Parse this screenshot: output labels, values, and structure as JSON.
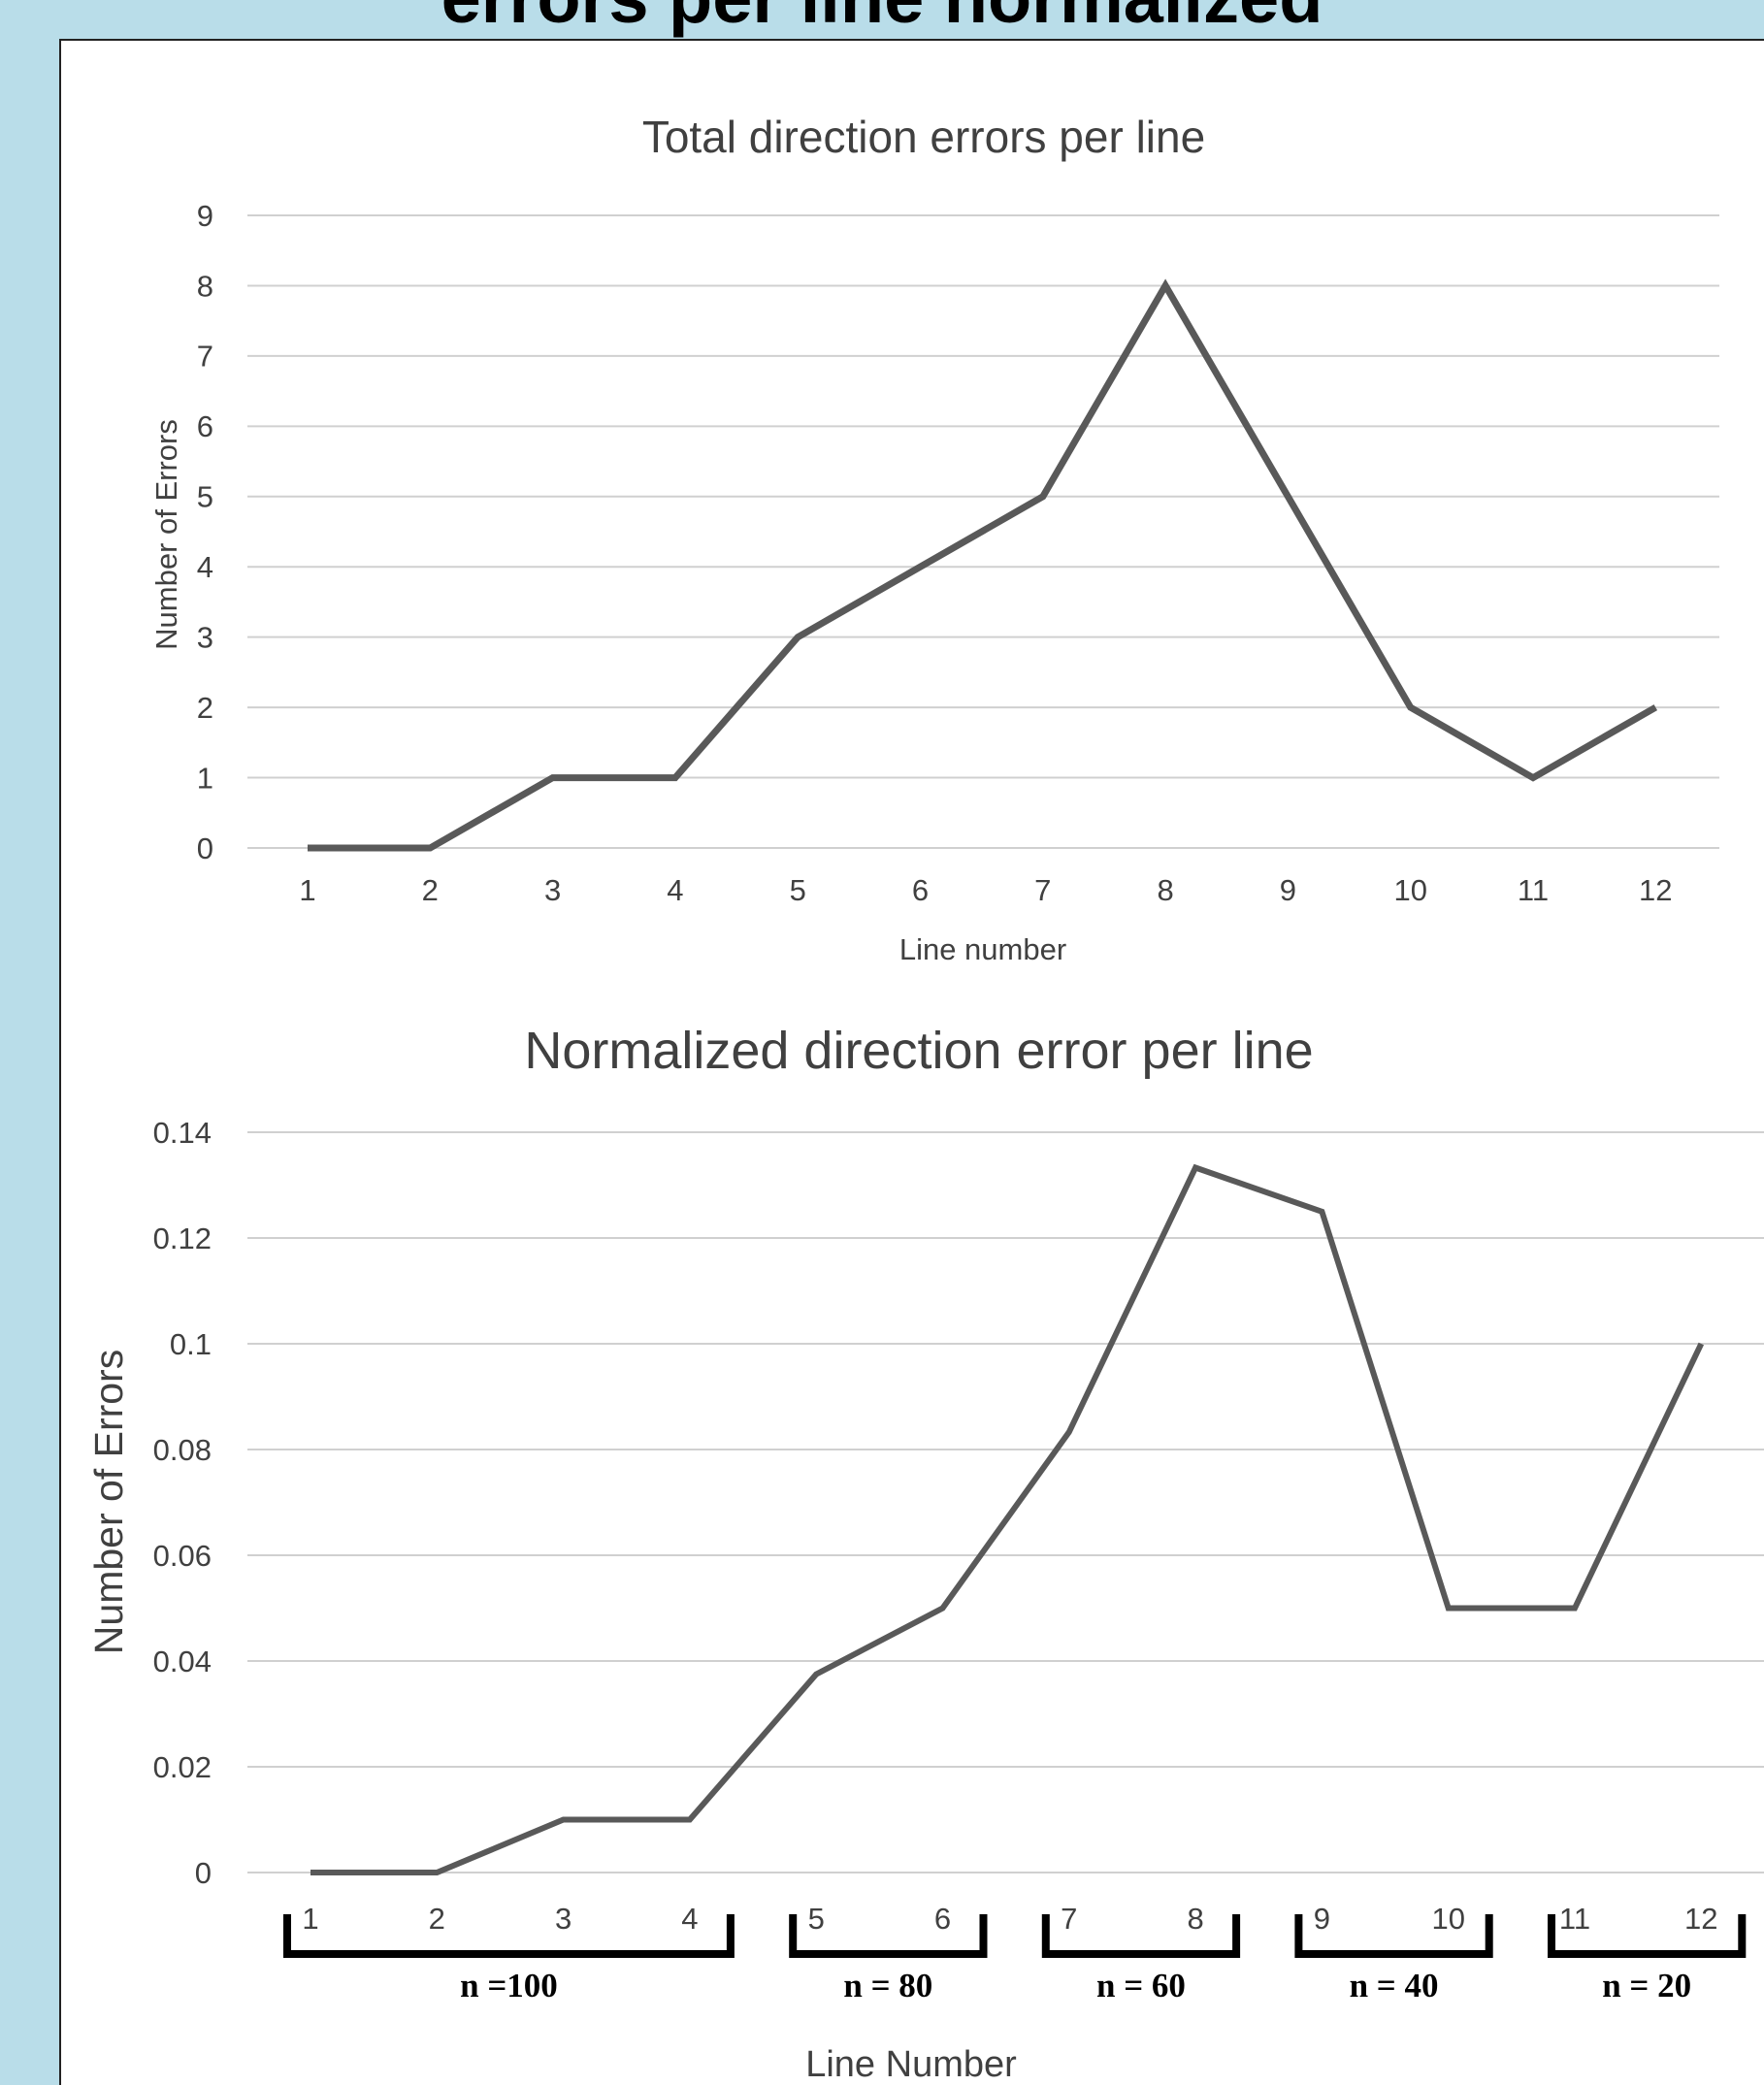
{
  "poster": {
    "heading": "errors per line normalized",
    "colors": {
      "background": "#b9dde9",
      "panel": "#ffffff",
      "line": "#595959",
      "grid": "#d0d0d0",
      "text": "#404040"
    }
  },
  "chart_data": [
    {
      "type": "line",
      "title": "Total direction errors per line",
      "xlabel": "Line number",
      "ylabel": "Number  of Errors",
      "categories": [
        "1",
        "2",
        "3",
        "4",
        "5",
        "6",
        "7",
        "8",
        "9",
        "10",
        "11",
        "12"
      ],
      "values": [
        0,
        0,
        1,
        1,
        3,
        4,
        5,
        8,
        5,
        2,
        1,
        2
      ],
      "yticks": [
        "0",
        "1",
        "2",
        "3",
        "4",
        "5",
        "6",
        "7",
        "8",
        "9"
      ],
      "ylim": [
        0,
        9
      ],
      "grid": true
    },
    {
      "type": "line",
      "title": "Normalized direction error per line",
      "xlabel": "Line Number",
      "ylabel": "Number of Errors",
      "categories": [
        "1",
        "2",
        "3",
        "4",
        "5",
        "6",
        "7",
        "8",
        "9",
        "10",
        "11",
        "12"
      ],
      "values": [
        0,
        0,
        0.01,
        0.01,
        0.0375,
        0.05,
        0.0833,
        0.1333,
        0.125,
        0.05,
        0.05,
        0.1
      ],
      "yticks": [
        "0",
        "0.02",
        "0.04",
        "0.06",
        "0.08",
        "0.1",
        "0.12",
        "0.14"
      ],
      "ylim": [
        0,
        0.14
      ],
      "grid": true,
      "groups": [
        {
          "label": "n =100",
          "lines": [
            1,
            4
          ]
        },
        {
          "label": "n = 80",
          "lines": [
            5,
            6
          ]
        },
        {
          "label": "n = 60",
          "lines": [
            7,
            8
          ]
        },
        {
          "label": "n = 40",
          "lines": [
            9,
            10
          ]
        },
        {
          "label": "n = 20",
          "lines": [
            11,
            12
          ]
        }
      ]
    }
  ]
}
